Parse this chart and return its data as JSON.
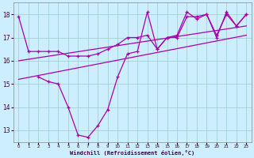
{
  "xlabel": "Windchill (Refroidissement éolien,°C)",
  "bg_color": "#cceeff",
  "line_color": "#aa00aa",
  "grid_color": "#99cccc",
  "x_hours": [
    0,
    1,
    2,
    3,
    4,
    5,
    6,
    7,
    8,
    9,
    10,
    11,
    12,
    13,
    14,
    15,
    16,
    17,
    18,
    19,
    20,
    21,
    22,
    23
  ],
  "series1": [
    17.9,
    16.4,
    16.4,
    16.4,
    16.4,
    16.2,
    16.2,
    16.2,
    16.3,
    16.5,
    16.7,
    17.0,
    17.0,
    17.1,
    16.5,
    17.0,
    17.0,
    17.9,
    17.9,
    18.0,
    17.1,
    18.0,
    17.5,
    18.0
  ],
  "series2": [
    null,
    null,
    15.3,
    15.1,
    15.0,
    14.0,
    12.8,
    12.7,
    13.2,
    13.9,
    15.3,
    16.3,
    16.4,
    18.1,
    16.5,
    17.0,
    17.1,
    18.1,
    17.8,
    18.0,
    17.0,
    18.1,
    17.5,
    18.0
  ],
  "trend1_x": [
    0,
    23
  ],
  "trend1_y": [
    15.2,
    17.1
  ],
  "trend2_x": [
    0,
    23
  ],
  "trend2_y": [
    16.0,
    17.5
  ],
  "ylim_min": 12.5,
  "ylim_max": 18.5,
  "yticks": [
    13,
    14,
    15,
    16,
    17,
    18
  ],
  "xlim_min": -0.5,
  "xlim_max": 23.5
}
